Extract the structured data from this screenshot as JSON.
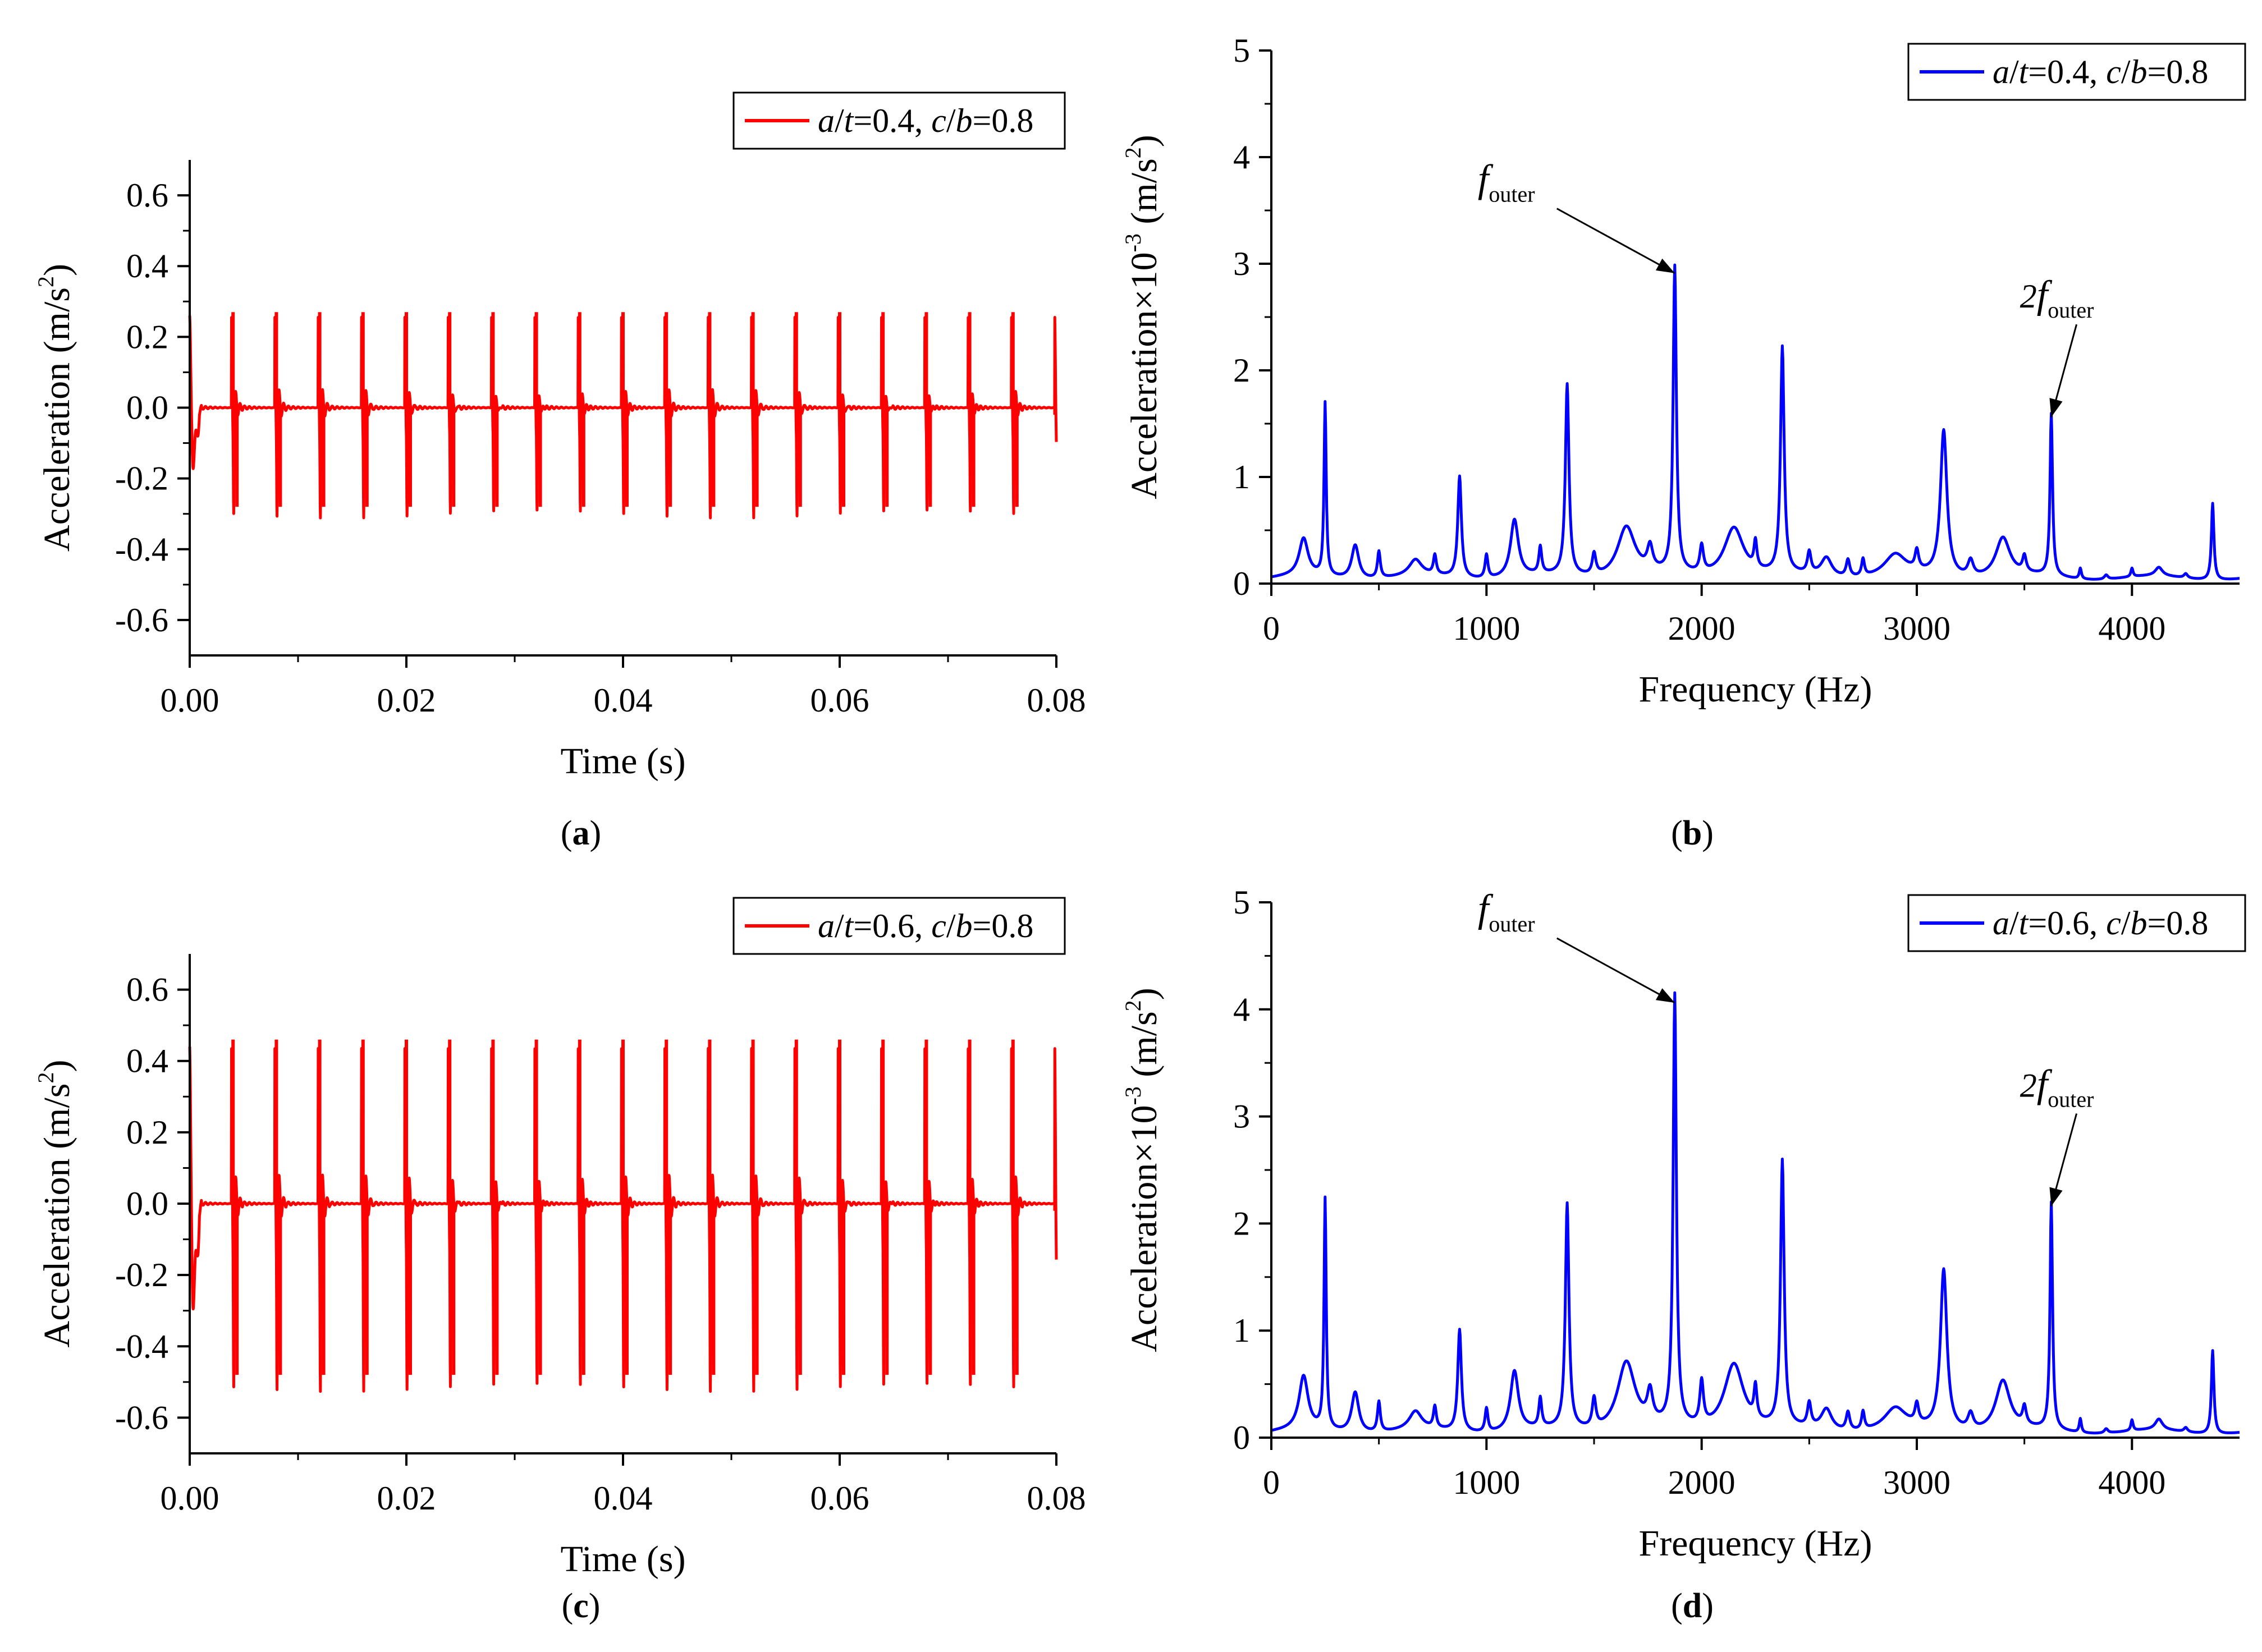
{
  "figure": {
    "colors": {
      "time_series": "#ff0000",
      "spectrum": "#0000ff",
      "axis": "#000000"
    }
  },
  "chart_data": [
    {
      "id": "a",
      "type": "line",
      "panel_label": "a",
      "xlabel": "Time (s)",
      "ylabel_main": "Acceleration (m/s",
      "ylabel_sup": "2",
      "ylabel_end": ")",
      "xlim": [
        0,
        0.08
      ],
      "ylim": [
        -0.7,
        0.7
      ],
      "xticks": [
        0.0,
        0.02,
        0.04,
        0.06,
        0.08
      ],
      "xtick_labels": [
        "0.00",
        "0.02",
        "0.04",
        "0.06",
        "0.08"
      ],
      "yticks": [
        -0.6,
        -0.4,
        -0.2,
        0.0,
        0.2,
        0.4,
        0.6
      ],
      "ytick_labels": [
        "-0.6",
        "-0.4",
        "-0.2",
        "0.0",
        "0.2",
        "0.4",
        "0.6"
      ],
      "legend": {
        "a_var": "a",
        "sep1": "/",
        "t_var": "t",
        "a_val": "=0.4, ",
        "c_var": "c",
        "sep2": "/",
        "b_var": "b",
        "b_val": "=0.8",
        "position": "top-right"
      },
      "impulse_period_s": 0.004,
      "peak_positive": 0.27,
      "peak_negative": -0.28,
      "start_transient": [
        0.26,
        -0.2
      ]
    },
    {
      "id": "b",
      "type": "line",
      "panel_label": "b",
      "xlabel": "Frequency (Hz)",
      "ylabel_main": "Acceleration×10",
      "ylabel_sup": "-3",
      "ylabel_unit": " (m/s",
      "ylabel_sup2": "2",
      "ylabel_end": ")",
      "xlim": [
        0,
        4500
      ],
      "ylim": [
        0,
        5
      ],
      "xticks": [
        0,
        1000,
        2000,
        3000,
        4000
      ],
      "xtick_labels": [
        "0",
        "1000",
        "2000",
        "3000",
        "4000"
      ],
      "yticks": [
        0,
        1,
        2,
        3,
        4,
        5
      ],
      "ytick_labels": [
        "0",
        "1",
        "2",
        "3",
        "4",
        "5"
      ],
      "legend": {
        "a_var": "a",
        "sep1": "/",
        "t_var": "t",
        "a_val": "=0.4, ",
        "c_var": "c",
        "sep2": "/",
        "b_var": "b",
        "b_val": "=0.8",
        "position": "top-right"
      },
      "annotations": [
        {
          "prefix": "",
          "italic": "f",
          "sub": "outer",
          "x": 1875,
          "y": 2.87
        },
        {
          "prefix": "2",
          "italic": "f",
          "sub": "outer",
          "x": 3625,
          "y": 1.52
        }
      ],
      "baseline": 0.05,
      "peaks": [
        {
          "f": 150,
          "a": 0.35,
          "w": 25
        },
        {
          "f": 250,
          "a": 1.62,
          "w": 6
        },
        {
          "f": 390,
          "a": 0.32,
          "w": 20
        },
        {
          "f": 500,
          "a": 0.25,
          "w": 8
        },
        {
          "f": 670,
          "a": 0.15,
          "w": 35
        },
        {
          "f": 760,
          "a": 0.18,
          "w": 8
        },
        {
          "f": 875,
          "a": 0.95,
          "w": 10
        },
        {
          "f": 1000,
          "a": 0.22,
          "w": 8
        },
        {
          "f": 1130,
          "a": 0.54,
          "w": 22
        },
        {
          "f": 1250,
          "a": 0.25,
          "w": 8
        },
        {
          "f": 1375,
          "a": 1.79,
          "w": 10
        },
        {
          "f": 1500,
          "a": 0.2,
          "w": 10
        },
        {
          "f": 1650,
          "a": 0.48,
          "w": 50
        },
        {
          "f": 1760,
          "a": 0.22,
          "w": 15
        },
        {
          "f": 1875,
          "a": 2.87,
          "w": 9
        },
        {
          "f": 2000,
          "a": 0.25,
          "w": 10
        },
        {
          "f": 2150,
          "a": 0.48,
          "w": 55
        },
        {
          "f": 2250,
          "a": 0.25,
          "w": 8
        },
        {
          "f": 2375,
          "a": 2.12,
          "w": 10
        },
        {
          "f": 2500,
          "a": 0.2,
          "w": 10
        },
        {
          "f": 2580,
          "a": 0.18,
          "w": 30
        },
        {
          "f": 2680,
          "a": 0.16,
          "w": 10
        },
        {
          "f": 2750,
          "a": 0.16,
          "w": 8
        },
        {
          "f": 2900,
          "a": 0.2,
          "w": 60
        },
        {
          "f": 3000,
          "a": 0.18,
          "w": 10
        },
        {
          "f": 3125,
          "a": 1.37,
          "w": 18
        },
        {
          "f": 3250,
          "a": 0.15,
          "w": 15
        },
        {
          "f": 3400,
          "a": 0.37,
          "w": 40
        },
        {
          "f": 3500,
          "a": 0.15,
          "w": 10
        },
        {
          "f": 3625,
          "a": 1.52,
          "w": 7
        },
        {
          "f": 3760,
          "a": 0.1,
          "w": 6
        },
        {
          "f": 3880,
          "a": 0.04,
          "w": 10
        },
        {
          "f": 4000,
          "a": 0.08,
          "w": 6
        },
        {
          "f": 4125,
          "a": 0.08,
          "w": 20
        },
        {
          "f": 4250,
          "a": 0.04,
          "w": 10
        },
        {
          "f": 4375,
          "a": 0.72,
          "w": 7
        }
      ]
    },
    {
      "id": "c",
      "type": "line",
      "panel_label": "c",
      "xlabel": "Time (s)",
      "ylabel_main": "Acceleration (m/s",
      "ylabel_sup": "2",
      "ylabel_end": ")",
      "xlim": [
        0,
        0.08
      ],
      "ylim": [
        -0.7,
        0.7
      ],
      "xticks": [
        0.0,
        0.02,
        0.04,
        0.06,
        0.08
      ],
      "xtick_labels": [
        "0.00",
        "0.02",
        "0.04",
        "0.06",
        "0.08"
      ],
      "yticks": [
        -0.6,
        -0.4,
        -0.2,
        0.0,
        0.2,
        0.4,
        0.6
      ],
      "ytick_labels": [
        "-0.6",
        "-0.4",
        "-0.2",
        "0.0",
        "0.2",
        "0.4",
        "0.6"
      ],
      "legend": {
        "a_var": "a",
        "sep1": "/",
        "t_var": "t",
        "a_val": "=0.6, ",
        "c_var": "c",
        "sep2": "/",
        "b_var": "b",
        "b_val": "=0.8",
        "position": "top-right"
      },
      "impulse_period_s": 0.004,
      "peak_positive": 0.46,
      "peak_negative": -0.48,
      "start_transient": [
        0.44,
        -0.37
      ]
    },
    {
      "id": "d",
      "type": "line",
      "panel_label": "d",
      "xlabel": "Frequency (Hz)",
      "ylabel_main": "Acceleration×10",
      "ylabel_sup": "-3",
      "ylabel_unit": " (m/s",
      "ylabel_sup2": "2",
      "ylabel_end": ")",
      "xlim": [
        0,
        4500
      ],
      "ylim": [
        0,
        5
      ],
      "xticks": [
        0,
        1000,
        2000,
        3000,
        4000
      ],
      "xtick_labels": [
        "0",
        "1000",
        "2000",
        "3000",
        "4000"
      ],
      "yticks": [
        0,
        1,
        2,
        3,
        4,
        5
      ],
      "ytick_labels": [
        "0",
        "1",
        "2",
        "3",
        "4",
        "5"
      ],
      "legend": {
        "a_var": "a",
        "sep1": "/",
        "t_var": "t",
        "a_val": "=0.6, ",
        "c_var": "c",
        "sep2": "/",
        "b_var": "b",
        "b_val": "=0.8",
        "position": "top-right"
      },
      "annotations": [
        {
          "prefix": "",
          "italic": "f",
          "sub": "outer",
          "x": 1875,
          "y": 4.02
        },
        {
          "prefix": "2",
          "italic": "f",
          "sub": "outer",
          "x": 3625,
          "y": 2.12
        }
      ],
      "baseline": 0.05,
      "peaks": [
        {
          "f": 150,
          "a": 0.5,
          "w": 25
        },
        {
          "f": 250,
          "a": 2.15,
          "w": 6
        },
        {
          "f": 390,
          "a": 0.38,
          "w": 20
        },
        {
          "f": 500,
          "a": 0.28,
          "w": 8
        },
        {
          "f": 670,
          "a": 0.17,
          "w": 35
        },
        {
          "f": 760,
          "a": 0.2,
          "w": 8
        },
        {
          "f": 875,
          "a": 0.95,
          "w": 10
        },
        {
          "f": 1000,
          "a": 0.22,
          "w": 8
        },
        {
          "f": 1130,
          "a": 0.56,
          "w": 22
        },
        {
          "f": 1250,
          "a": 0.27,
          "w": 8
        },
        {
          "f": 1375,
          "a": 2.1,
          "w": 10
        },
        {
          "f": 1500,
          "a": 0.27,
          "w": 10
        },
        {
          "f": 1650,
          "a": 0.65,
          "w": 50
        },
        {
          "f": 1760,
          "a": 0.28,
          "w": 15
        },
        {
          "f": 1875,
          "a": 4.02,
          "w": 9
        },
        {
          "f": 2000,
          "a": 0.4,
          "w": 10
        },
        {
          "f": 2150,
          "a": 0.64,
          "w": 55
        },
        {
          "f": 2250,
          "a": 0.3,
          "w": 8
        },
        {
          "f": 2375,
          "a": 2.48,
          "w": 10
        },
        {
          "f": 2500,
          "a": 0.22,
          "w": 10
        },
        {
          "f": 2580,
          "a": 0.2,
          "w": 30
        },
        {
          "f": 2680,
          "a": 0.17,
          "w": 10
        },
        {
          "f": 2750,
          "a": 0.17,
          "w": 8
        },
        {
          "f": 2900,
          "a": 0.2,
          "w": 60
        },
        {
          "f": 3000,
          "a": 0.18,
          "w": 10
        },
        {
          "f": 3125,
          "a": 1.5,
          "w": 18
        },
        {
          "f": 3250,
          "a": 0.15,
          "w": 15
        },
        {
          "f": 3400,
          "a": 0.47,
          "w": 40
        },
        {
          "f": 3500,
          "a": 0.17,
          "w": 10
        },
        {
          "f": 3625,
          "a": 2.12,
          "w": 7
        },
        {
          "f": 3760,
          "a": 0.13,
          "w": 6
        },
        {
          "f": 3880,
          "a": 0.04,
          "w": 10
        },
        {
          "f": 4000,
          "a": 0.1,
          "w": 6
        },
        {
          "f": 4125,
          "a": 0.1,
          "w": 20
        },
        {
          "f": 4250,
          "a": 0.04,
          "w": 10
        },
        {
          "f": 4375,
          "a": 0.78,
          "w": 7
        }
      ]
    }
  ]
}
